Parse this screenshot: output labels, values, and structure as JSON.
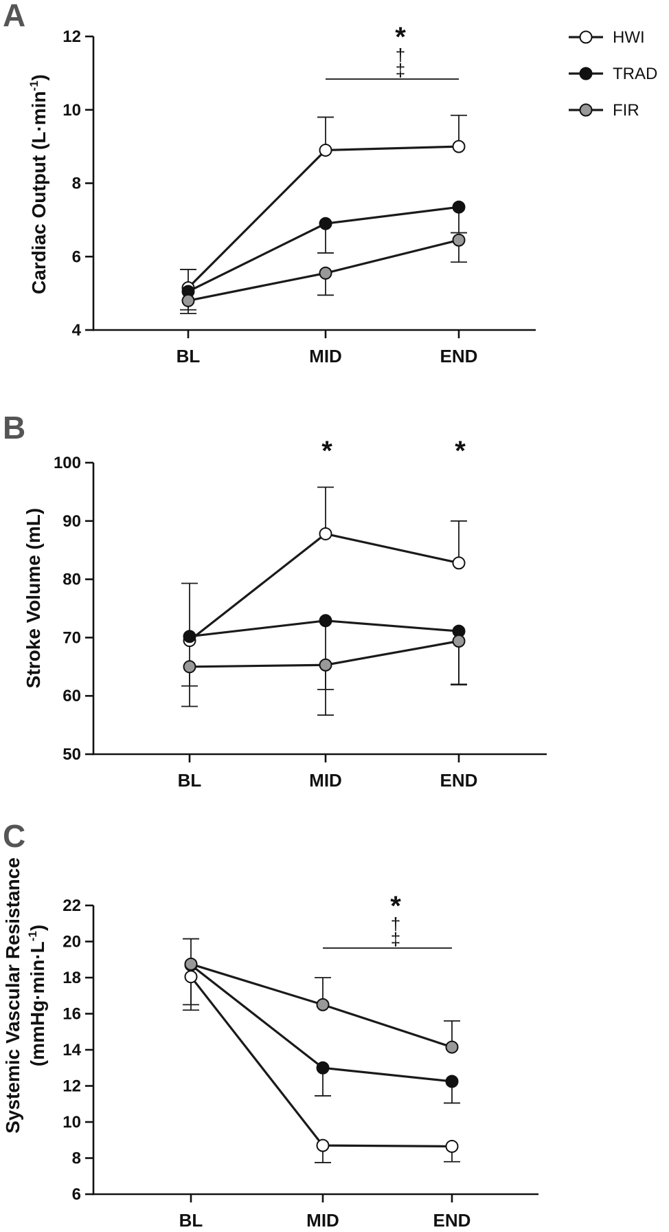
{
  "chart_data": [
    {
      "panel": "A",
      "type": "line",
      "ylabel": "Cardiac Output (L·min",
      "ylabel_sup": "-1",
      "ylabel_end": ")",
      "categories": [
        "BL",
        "MID",
        "END"
      ],
      "ylim": [
        4,
        12
      ],
      "yticks": [
        4,
        6,
        8,
        10,
        12
      ],
      "series": [
        {
          "name": "HWI",
          "values": [
            5.15,
            8.9,
            9.0
          ],
          "err": [
            0.5,
            0.9,
            0.85
          ],
          "err_dir": "up"
        },
        {
          "name": "TRAD",
          "values": [
            5.05,
            6.9,
            7.35
          ],
          "err": [
            0.5,
            0.8,
            0.7
          ],
          "err_dir": "down"
        },
        {
          "name": "FIR",
          "values": [
            4.8,
            5.55,
            6.45
          ],
          "err": [
            0.35,
            0.6,
            0.6
          ],
          "err_dir": "down"
        }
      ],
      "significance": [
        {
          "from": "MID",
          "to": "END",
          "symbols": [
            "*",
            "†",
            "‡"
          ]
        }
      ]
    },
    {
      "panel": "B",
      "type": "line",
      "ylabel": "Stroke Volume (mL)",
      "categories": [
        "BL",
        "MID",
        "END"
      ],
      "ylim": [
        50,
        100
      ],
      "yticks": [
        50,
        60,
        70,
        80,
        90,
        100
      ],
      "series": [
        {
          "name": "HWI",
          "values": [
            69.5,
            87.8,
            82.8
          ],
          "err": [
            9.8,
            8.0,
            7.2
          ],
          "err_dir": "up"
        },
        {
          "name": "TRAD",
          "values": [
            70.2,
            72.9,
            71.1
          ],
          "err": [
            8.5,
            11.8,
            9.2
          ],
          "err_dir": "down"
        },
        {
          "name": "FIR",
          "values": [
            65.0,
            65.3,
            69.4
          ],
          "err": [
            6.8,
            8.6,
            7.4
          ],
          "err_dir": "down"
        }
      ],
      "significance": [
        {
          "at": "MID",
          "symbols": [
            "*"
          ]
        },
        {
          "at": "END",
          "symbols": [
            "*"
          ]
        }
      ]
    },
    {
      "panel": "C",
      "type": "line",
      "ylabel_line1": "Systemic Vascular Resistance",
      "ylabel_line2": "(mmHg·min·L",
      "ylabel_sup": "-1",
      "ylabel_end": ")",
      "categories": [
        "BL",
        "MID",
        "END"
      ],
      "ylim": [
        6,
        22
      ],
      "yticks": [
        6,
        8,
        10,
        12,
        14,
        16,
        18,
        20,
        22
      ],
      "series": [
        {
          "name": "HWI",
          "values": [
            18.05,
            8.7,
            8.65
          ],
          "err": [
            1.85,
            0.95,
            0.85
          ],
          "err_dir": "down"
        },
        {
          "name": "TRAD",
          "values": [
            18.7,
            13.0,
            12.25
          ],
          "err": [
            2.2,
            1.55,
            1.2
          ],
          "err_dir": "down"
        },
        {
          "name": "FIR",
          "values": [
            18.75,
            16.5,
            14.15
          ],
          "err": [
            1.4,
            1.5,
            1.45
          ],
          "err_dir": "up"
        }
      ],
      "significance": [
        {
          "from": "MID",
          "to": "END",
          "symbols": [
            "*",
            "†",
            "‡"
          ]
        }
      ]
    }
  ],
  "legend": {
    "placement": "top-right",
    "items": [
      {
        "name": "HWI",
        "fill": "#ffffff"
      },
      {
        "name": "TRAD",
        "fill": "#111111"
      },
      {
        "name": "FIR",
        "fill": "#999999"
      }
    ]
  },
  "colors": {
    "HWI": "#ffffff",
    "TRAD": "#111111",
    "FIR": "#999999",
    "stroke": "#111111"
  }
}
